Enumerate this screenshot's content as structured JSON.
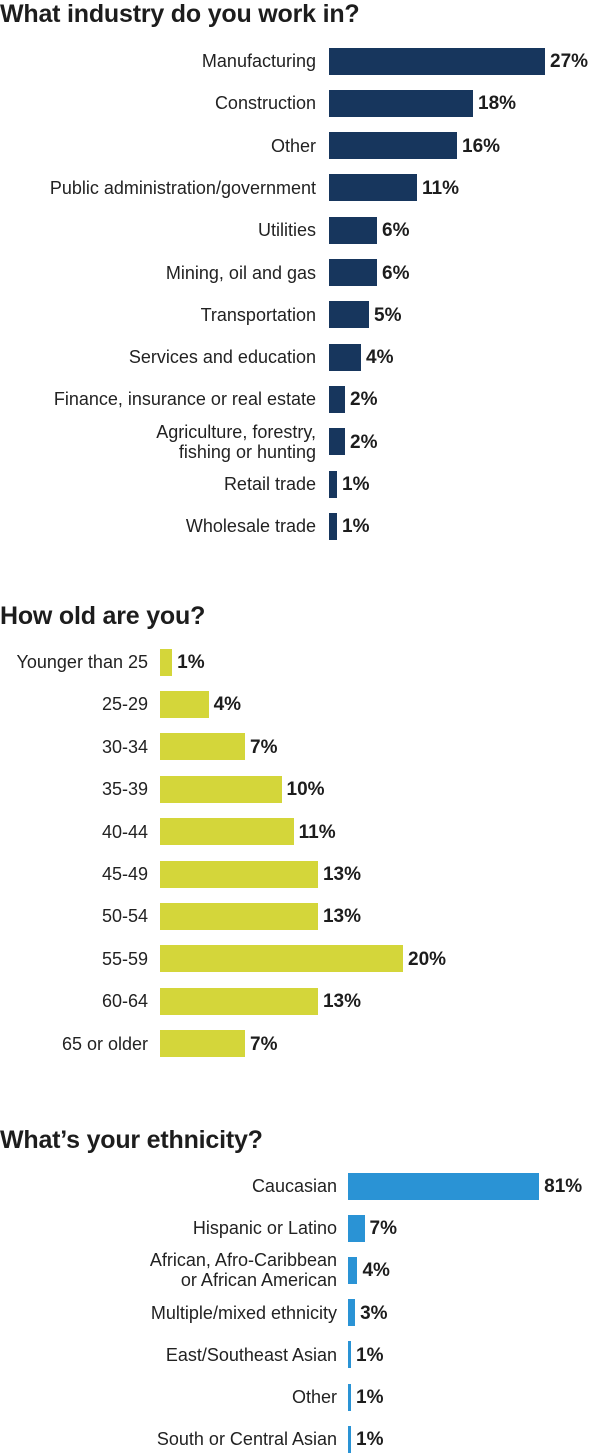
{
  "colors": {
    "industry_bar": "#17365d",
    "age_bar": "#d4d63a",
    "ethnicity_bar": "#2a93d5"
  },
  "chart_data": [
    {
      "type": "bar",
      "orientation": "horizontal",
      "title": "What industry do you work in?",
      "categories": [
        "Manufacturing",
        "Construction",
        "Other",
        "Public administration/government",
        "Utilities",
        "Mining, oil and gas",
        "Transportation",
        "Services and education",
        "Finance, insurance or real estate",
        "Agriculture, forestry,\nfishing or hunting",
        "Retail trade",
        "Wholesale trade"
      ],
      "values": [
        27,
        18,
        16,
        11,
        6,
        6,
        5,
        4,
        2,
        2,
        1,
        1
      ],
      "value_labels": [
        "27%",
        "18%",
        "16%",
        "11%",
        "6%",
        "6%",
        "5%",
        "4%",
        "2%",
        "2%",
        "1%",
        "1%"
      ],
      "unit": "%"
    },
    {
      "type": "bar",
      "orientation": "horizontal",
      "title": "How old are you?",
      "categories": [
        "Younger than 25",
        "25-29",
        "30-34",
        "35-39",
        "40-44",
        "45-49",
        "50-54",
        "55-59",
        "60-64",
        "65 or older"
      ],
      "values": [
        1,
        4,
        7,
        10,
        11,
        13,
        13,
        20,
        13,
        7
      ],
      "value_labels": [
        "1%",
        "4%",
        "7%",
        "10%",
        "11%",
        "13%",
        "13%",
        "20%",
        "13%",
        "7%"
      ],
      "unit": "%"
    },
    {
      "type": "bar",
      "orientation": "horizontal",
      "title": "What’s your ethnicity?",
      "categories": [
        "Caucasian",
        "Hispanic or Latino",
        "African, Afro-Caribbean\nor African American",
        "Multiple/mixed ethnicity",
        "East/Southeast Asian",
        "Other",
        "South or Central Asian"
      ],
      "values": [
        81,
        7,
        4,
        3,
        1,
        1,
        1
      ],
      "value_labels": [
        "81%",
        "7%",
        "4%",
        "3%",
        "1%",
        "1%",
        "1%"
      ],
      "unit": "%"
    }
  ]
}
